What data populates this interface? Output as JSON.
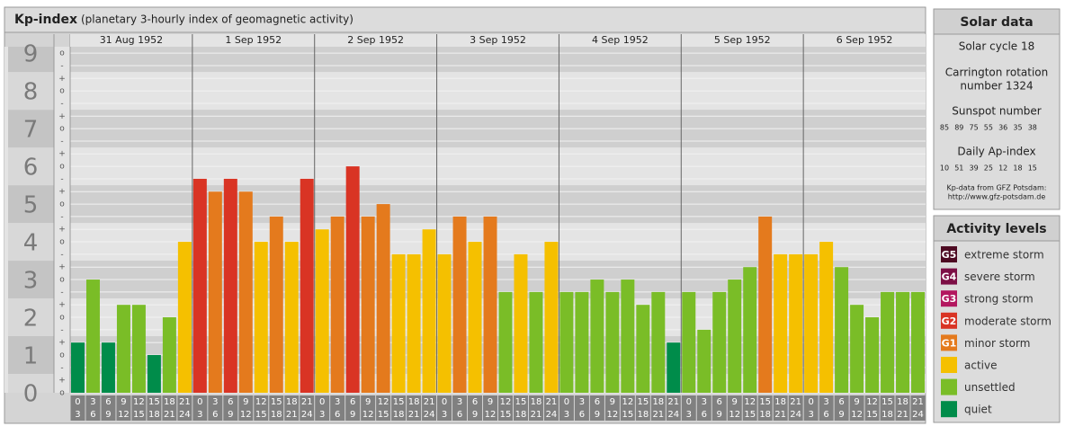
{
  "chart_data": {
    "type": "bar",
    "title": "Kp-index",
    "subtitle": "(planetary 3-hourly index of geomagnetic activity)",
    "days": [
      "31 Aug 1952",
      "1 Sep 1952",
      "2 Sep 1952",
      "3 Sep 1952",
      "4 Sep 1952",
      "5 Sep 1952",
      "6 Sep 1952"
    ],
    "intervals": [
      [
        "0",
        "3"
      ],
      [
        "3",
        "6"
      ],
      [
        "6",
        "9"
      ],
      [
        "9",
        "12"
      ],
      [
        "12",
        "15"
      ],
      [
        "15",
        "18"
      ],
      [
        "18",
        "21"
      ],
      [
        "21",
        "24"
      ]
    ],
    "values": [
      1.33,
      3,
      1.33,
      2.33,
      2.33,
      1,
      2,
      4,
      5.67,
      5.33,
      5.67,
      5.33,
      4,
      4.67,
      4,
      5.67,
      4.33,
      4.67,
      6,
      4.67,
      5,
      3.67,
      3.67,
      4.33,
      3.67,
      4.67,
      4,
      4.67,
      2.67,
      3.67,
      2.67,
      4,
      2.67,
      2.67,
      3,
      2.67,
      3,
      2.33,
      2.67,
      1.33,
      2.67,
      1.67,
      2.67,
      3,
      3.33,
      4.67,
      3.67,
      3.67,
      3.67,
      4,
      3.33,
      2.33,
      2,
      2.67,
      2.67,
      2.67
    ],
    "colors": [
      "#008c4a",
      "#7abd27",
      "#008c4a",
      "#7abd27",
      "#7abd27",
      "#008c4a",
      "#7abd27",
      "#f5c000",
      "#d93424",
      "#e47a1d",
      "#d93424",
      "#e47a1d",
      "#f5c000",
      "#e47a1d",
      "#f5c000",
      "#d93424",
      "#f5c000",
      "#e47a1d",
      "#d93424",
      "#e47a1d",
      "#e47a1d",
      "#f5c000",
      "#f5c000",
      "#f5c000",
      "#f5c000",
      "#e47a1d",
      "#f5c000",
      "#e47a1d",
      "#7abd27",
      "#f5c000",
      "#7abd27",
      "#f5c000",
      "#7abd27",
      "#7abd27",
      "#7abd27",
      "#7abd27",
      "#7abd27",
      "#7abd27",
      "#7abd27",
      "#008c4a",
      "#7abd27",
      "#7abd27",
      "#7abd27",
      "#7abd27",
      "#7abd27",
      "#e47a1d",
      "#f5c000",
      "#f5c000",
      "#f5c000",
      "#f5c000",
      "#7abd27",
      "#7abd27",
      "#7abd27",
      "#7abd27",
      "#7abd27",
      "#7abd27"
    ],
    "ylim": [
      0,
      9.17
    ],
    "yticks": [
      0,
      1,
      2,
      3,
      4,
      5,
      6,
      7,
      8,
      9
    ],
    "minor_yticks": [
      {
        "value": 0,
        "label": "o"
      },
      {
        "value": 0.33,
        "label": "+"
      },
      {
        "value": 0.67,
        "label": "-"
      },
      {
        "value": 1,
        "label": "o"
      },
      {
        "value": 1.33,
        "label": "+"
      },
      {
        "value": 1.67,
        "label": "-"
      },
      {
        "value": 2,
        "label": "o"
      },
      {
        "value": 2.33,
        "label": "+"
      },
      {
        "value": 2.67,
        "label": "-"
      },
      {
        "value": 3,
        "label": "o"
      },
      {
        "value": 3.33,
        "label": "+"
      },
      {
        "value": 3.67,
        "label": "-"
      },
      {
        "value": 4,
        "label": "o"
      },
      {
        "value": 4.33,
        "label": "+"
      },
      {
        "value": 4.67,
        "label": "-"
      },
      {
        "value": 5,
        "label": "o"
      },
      {
        "value": 5.33,
        "label": "+"
      },
      {
        "value": 5.67,
        "label": "-"
      },
      {
        "value": 6,
        "label": "o"
      },
      {
        "value": 6.33,
        "label": "+"
      },
      {
        "value": 6.67,
        "label": "-"
      },
      {
        "value": 7,
        "label": "o"
      },
      {
        "value": 7.33,
        "label": "+"
      },
      {
        "value": 7.67,
        "label": "-"
      },
      {
        "value": 8,
        "label": "o"
      },
      {
        "value": 8.33,
        "label": "+"
      },
      {
        "value": 8.67,
        "label": "-"
      },
      {
        "value": 9,
        "label": "o"
      }
    ],
    "grid": true
  },
  "solar_data": {
    "title": "Solar data",
    "cycle": "Solar cycle 18",
    "carrington": [
      "Carrington rotation",
      "number 1324"
    ],
    "sunspot_label": "Sunspot number",
    "sunspot": [
      "85",
      "89",
      "75",
      "55",
      "36",
      "35",
      "38"
    ],
    "ap_label": "Daily Ap-index",
    "ap": [
      "10",
      "51",
      "39",
      "25",
      "12",
      "18",
      "15"
    ],
    "credit": [
      "Kp-data from GFZ Potsdam:",
      "http://www.gfz-potsdam.de"
    ]
  },
  "activity_levels": {
    "title": "Activity levels",
    "levels": [
      {
        "code": "G5",
        "label": "extreme storm",
        "color": "#4d0a22"
      },
      {
        "code": "G4",
        "label": "severe storm",
        "color": "#7c0f45"
      },
      {
        "code": "G3",
        "label": "strong storm",
        "color": "#b3175f"
      },
      {
        "code": "G2",
        "label": "moderate storm",
        "color": "#d93424"
      },
      {
        "code": "G1",
        "label": "minor storm",
        "color": "#e47a1d"
      },
      {
        "label": "active",
        "color": "#f5c000"
      },
      {
        "label": "unsettled",
        "color": "#7abd27"
      },
      {
        "label": "quiet",
        "color": "#008c4a"
      }
    ]
  }
}
